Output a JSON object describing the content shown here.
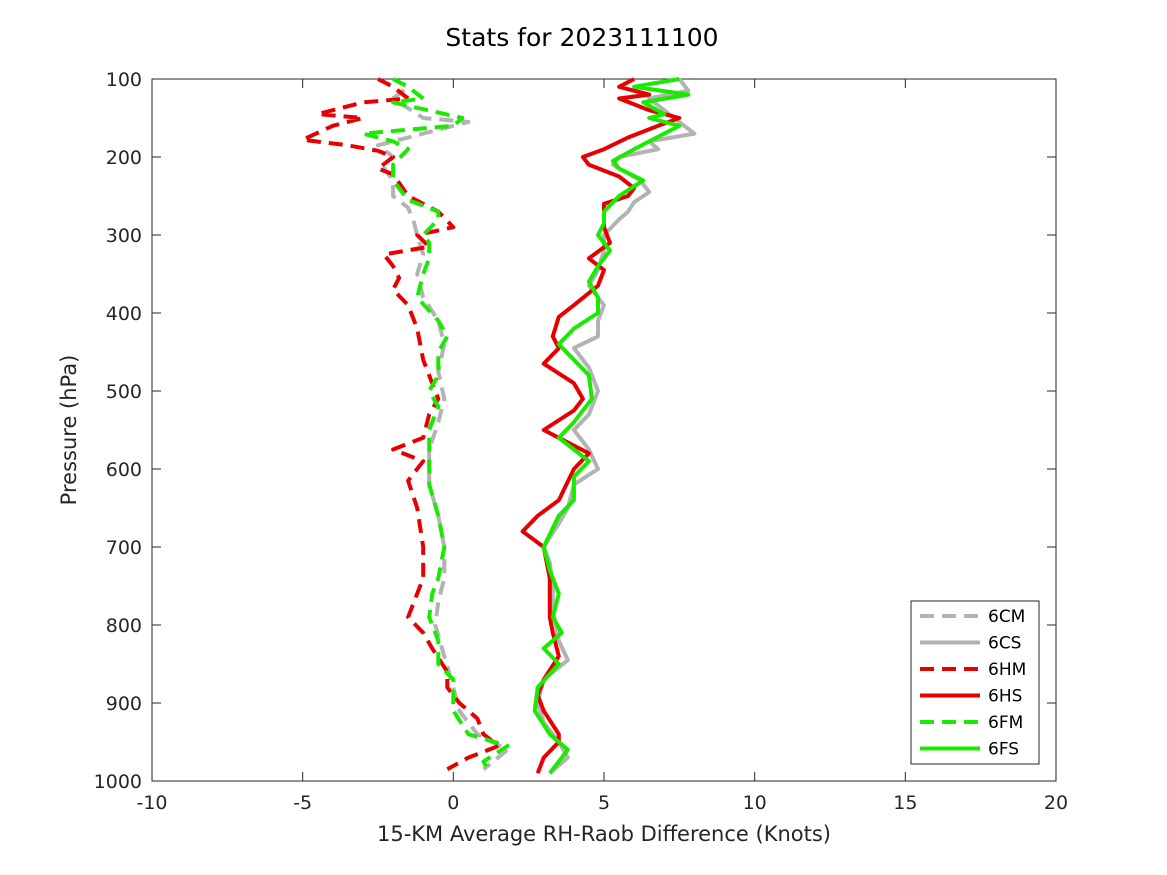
{
  "chart_data": {
    "type": "line",
    "title": "Stats for 2023111100",
    "xlabel": "15-KM Average RH-Raob Difference (Knots)",
    "ylabel": "Pressure (hPa)",
    "xlim": [
      -10,
      20
    ],
    "ylim": [
      100,
      1000
    ],
    "y_reversed": true,
    "grid": false,
    "legend_position": "bottom-right",
    "xticks": [
      -10,
      -5,
      0,
      5,
      10,
      15,
      20
    ],
    "yticks": [
      100,
      200,
      300,
      400,
      500,
      600,
      700,
      800,
      900,
      1000
    ],
    "series": [
      {
        "name": "6CM",
        "color": "#b3b3b3",
        "dash": true,
        "points": [
          [
            -2.0,
            100
          ],
          [
            -1.5,
            110
          ],
          [
            -2.0,
            125
          ],
          [
            -1.0,
            150
          ],
          [
            0.5,
            155
          ],
          [
            -1.0,
            170
          ],
          [
            -2.5,
            185
          ],
          [
            -2.0,
            200
          ],
          [
            -2.3,
            215
          ],
          [
            -2.0,
            230
          ],
          [
            -2.0,
            250
          ],
          [
            -1.5,
            265
          ],
          [
            -1.3,
            285
          ],
          [
            -1.2,
            300
          ],
          [
            -1.0,
            325
          ],
          [
            -1.2,
            350
          ],
          [
            -1.0,
            380
          ],
          [
            -0.5,
            410
          ],
          [
            -0.3,
            440
          ],
          [
            -0.5,
            475
          ],
          [
            -0.3,
            510
          ],
          [
            -0.5,
            540
          ],
          [
            -0.8,
            575
          ],
          [
            -0.8,
            620
          ],
          [
            -0.5,
            660
          ],
          [
            -0.3,
            700
          ],
          [
            -0.3,
            740
          ],
          [
            -0.5,
            770
          ],
          [
            -0.6,
            800
          ],
          [
            -0.3,
            840
          ],
          [
            0.0,
            880
          ],
          [
            0.2,
            910
          ],
          [
            0.8,
            940
          ],
          [
            1.8,
            960
          ],
          [
            1.0,
            985
          ]
        ]
      },
      {
        "name": "6CS",
        "color": "#b3b3b3",
        "dash": false,
        "points": [
          [
            7.5,
            100
          ],
          [
            7.8,
            115
          ],
          [
            6.5,
            125
          ],
          [
            7.0,
            140
          ],
          [
            7.5,
            155
          ],
          [
            8.0,
            170
          ],
          [
            6.5,
            180
          ],
          [
            6.8,
            190
          ],
          [
            5.5,
            200
          ],
          [
            5.3,
            210
          ],
          [
            6.2,
            230
          ],
          [
            6.5,
            245
          ],
          [
            6.0,
            258
          ],
          [
            5.8,
            270
          ],
          [
            5.5,
            280
          ],
          [
            5.0,
            300
          ],
          [
            5.0,
            320
          ],
          [
            4.8,
            345
          ],
          [
            4.5,
            365
          ],
          [
            5.0,
            390
          ],
          [
            4.8,
            410
          ],
          [
            4.8,
            430
          ],
          [
            4.0,
            445
          ],
          [
            4.5,
            470
          ],
          [
            4.8,
            500
          ],
          [
            4.5,
            530
          ],
          [
            4.0,
            550
          ],
          [
            4.5,
            575
          ],
          [
            4.8,
            600
          ],
          [
            4.0,
            620
          ],
          [
            3.8,
            650
          ],
          [
            3.5,
            670
          ],
          [
            3.0,
            700
          ],
          [
            3.2,
            720
          ],
          [
            3.3,
            750
          ],
          [
            3.3,
            780
          ],
          [
            3.4,
            800
          ],
          [
            3.5,
            820
          ],
          [
            3.8,
            845
          ],
          [
            3.0,
            870
          ],
          [
            2.8,
            900
          ],
          [
            3.0,
            925
          ],
          [
            3.5,
            950
          ],
          [
            3.8,
            970
          ],
          [
            3.2,
            990
          ]
        ]
      },
      {
        "name": "6HM",
        "color": "#e60000",
        "dash": true,
        "points": [
          [
            -2.5,
            100
          ],
          [
            -2.0,
            110
          ],
          [
            -1.5,
            125
          ],
          [
            -3.0,
            130
          ],
          [
            -4.5,
            145
          ],
          [
            -3.0,
            150
          ],
          [
            -4.0,
            160
          ],
          [
            -5.0,
            178
          ],
          [
            -3.5,
            185
          ],
          [
            -2.5,
            192
          ],
          [
            -2.0,
            200
          ],
          [
            -2.5,
            215
          ],
          [
            -2.0,
            222
          ],
          [
            -1.5,
            250
          ],
          [
            -0.5,
            270
          ],
          [
            0.0,
            290
          ],
          [
            -1.2,
            300
          ],
          [
            -0.8,
            315
          ],
          [
            -2.3,
            325
          ],
          [
            -2.0,
            340
          ],
          [
            -1.8,
            355
          ],
          [
            -2.0,
            370
          ],
          [
            -1.5,
            390
          ],
          [
            -1.2,
            420
          ],
          [
            -1.0,
            460
          ],
          [
            -0.7,
            490
          ],
          [
            -0.5,
            510
          ],
          [
            -0.8,
            530
          ],
          [
            -1.0,
            560
          ],
          [
            -2.0,
            575
          ],
          [
            -1.0,
            590
          ],
          [
            -1.5,
            615
          ],
          [
            -1.2,
            650
          ],
          [
            -1.0,
            700
          ],
          [
            -1.0,
            740
          ],
          [
            -1.5,
            790
          ],
          [
            -1.0,
            810
          ],
          [
            -0.7,
            830
          ],
          [
            -0.2,
            860
          ],
          [
            -0.2,
            880
          ],
          [
            0.2,
            900
          ],
          [
            0.8,
            920
          ],
          [
            1.0,
            940
          ],
          [
            1.5,
            955
          ],
          [
            0.5,
            970
          ],
          [
            -0.2,
            985
          ]
        ]
      },
      {
        "name": "6HS",
        "color": "#e60000",
        "dash": false,
        "points": [
          [
            6.0,
            100
          ],
          [
            5.5,
            110
          ],
          [
            6.5,
            120
          ],
          [
            5.5,
            125
          ],
          [
            6.5,
            140
          ],
          [
            7.0,
            145
          ],
          [
            7.5,
            150
          ],
          [
            6.8,
            160
          ],
          [
            5.8,
            175
          ],
          [
            5.0,
            190
          ],
          [
            4.3,
            200
          ],
          [
            4.5,
            210
          ],
          [
            5.5,
            225
          ],
          [
            6.0,
            240
          ],
          [
            5.8,
            250
          ],
          [
            5.0,
            260
          ],
          [
            5.0,
            280
          ],
          [
            5.0,
            290
          ],
          [
            5.2,
            310
          ],
          [
            4.5,
            330
          ],
          [
            5.0,
            345
          ],
          [
            4.8,
            365
          ],
          [
            4.0,
            390
          ],
          [
            3.5,
            405
          ],
          [
            3.3,
            430
          ],
          [
            3.5,
            445
          ],
          [
            3.0,
            465
          ],
          [
            4.0,
            490
          ],
          [
            4.3,
            510
          ],
          [
            4.0,
            525
          ],
          [
            3.0,
            550
          ],
          [
            3.5,
            560
          ],
          [
            4.5,
            580
          ],
          [
            4.0,
            600
          ],
          [
            3.5,
            640
          ],
          [
            2.8,
            660
          ],
          [
            2.3,
            680
          ],
          [
            3.0,
            700
          ],
          [
            3.2,
            740
          ],
          [
            3.2,
            770
          ],
          [
            3.2,
            790
          ],
          [
            3.3,
            810
          ],
          [
            3.5,
            840
          ],
          [
            3.0,
            870
          ],
          [
            2.8,
            890
          ],
          [
            3.0,
            910
          ],
          [
            3.5,
            940
          ],
          [
            3.5,
            950
          ],
          [
            3.0,
            970
          ],
          [
            2.8,
            990
          ]
        ]
      },
      {
        "name": "6FM",
        "color": "#1aea00",
        "dash": true,
        "points": [
          [
            -2.0,
            100
          ],
          [
            -1.5,
            110
          ],
          [
            -1.0,
            125
          ],
          [
            -2.0,
            130
          ],
          [
            0.3,
            150
          ],
          [
            0.0,
            160
          ],
          [
            -3.0,
            170
          ],
          [
            -2.0,
            180
          ],
          [
            -1.5,
            190
          ],
          [
            -2.0,
            210
          ],
          [
            -2.0,
            230
          ],
          [
            -1.5,
            255
          ],
          [
            -0.5,
            270
          ],
          [
            -0.5,
            280
          ],
          [
            -1.0,
            300
          ],
          [
            -0.8,
            310
          ],
          [
            -0.8,
            330
          ],
          [
            -1.0,
            350
          ],
          [
            -1.2,
            380
          ],
          [
            -0.5,
            410
          ],
          [
            -0.2,
            430
          ],
          [
            -0.5,
            450
          ],
          [
            -0.5,
            480
          ],
          [
            -0.8,
            500
          ],
          [
            -0.5,
            520
          ],
          [
            -0.8,
            550
          ],
          [
            -0.8,
            580
          ],
          [
            -0.8,
            620
          ],
          [
            -0.5,
            660
          ],
          [
            -0.3,
            700
          ],
          [
            -0.5,
            740
          ],
          [
            -0.7,
            760
          ],
          [
            -0.8,
            790
          ],
          [
            -0.5,
            820
          ],
          [
            -0.5,
            850
          ],
          [
            0.0,
            870
          ],
          [
            0.0,
            890
          ],
          [
            0.0,
            910
          ],
          [
            0.5,
            940
          ],
          [
            1.8,
            955
          ],
          [
            1.0,
            975
          ],
          [
            1.2,
            990
          ]
        ]
      },
      {
        "name": "6FS",
        "color": "#1aea00",
        "dash": false,
        "points": [
          [
            7.5,
            100
          ],
          [
            6.0,
            110
          ],
          [
            7.8,
            120
          ],
          [
            6.3,
            130
          ],
          [
            7.0,
            145
          ],
          [
            6.5,
            150
          ],
          [
            7.5,
            160
          ],
          [
            7.0,
            170
          ],
          [
            6.5,
            180
          ],
          [
            6.0,
            190
          ],
          [
            5.3,
            205
          ],
          [
            5.5,
            215
          ],
          [
            6.3,
            230
          ],
          [
            5.5,
            250
          ],
          [
            5.0,
            270
          ],
          [
            5.0,
            285
          ],
          [
            4.8,
            300
          ],
          [
            5.2,
            320
          ],
          [
            4.8,
            340
          ],
          [
            4.5,
            360
          ],
          [
            4.8,
            380
          ],
          [
            4.8,
            400
          ],
          [
            4.0,
            420
          ],
          [
            3.5,
            440
          ],
          [
            4.0,
            460
          ],
          [
            4.5,
            480
          ],
          [
            4.6,
            510
          ],
          [
            4.0,
            540
          ],
          [
            3.5,
            560
          ],
          [
            4.0,
            575
          ],
          [
            4.5,
            590
          ],
          [
            4.0,
            610
          ],
          [
            4.0,
            640
          ],
          [
            3.5,
            660
          ],
          [
            3.0,
            700
          ],
          [
            3.2,
            730
          ],
          [
            3.5,
            760
          ],
          [
            3.3,
            790
          ],
          [
            3.6,
            810
          ],
          [
            3.0,
            830
          ],
          [
            3.5,
            850
          ],
          [
            2.8,
            880
          ],
          [
            2.7,
            910
          ],
          [
            3.2,
            940
          ],
          [
            3.8,
            960
          ],
          [
            3.2,
            990
          ]
        ]
      }
    ]
  }
}
